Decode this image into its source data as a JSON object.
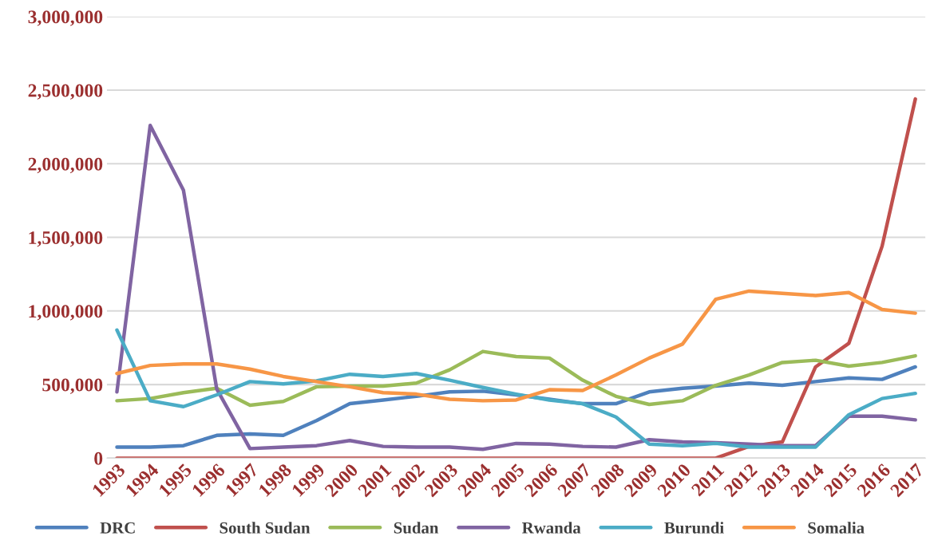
{
  "chart_data": {
    "type": "line",
    "categories": [
      "1993",
      "1994",
      "1995",
      "1996",
      "1997",
      "1998",
      "1999",
      "2000",
      "2001",
      "2002",
      "2003",
      "2004",
      "2005",
      "2006",
      "2007",
      "2008",
      "2009",
      "2010",
      "2011",
      "2012",
      "2013",
      "2014",
      "2015",
      "2016",
      "2017"
    ],
    "series": [
      {
        "name": "DRC",
        "color": "#4f81bd",
        "values": [
          75000,
          75000,
          85000,
          155000,
          165000,
          155000,
          255000,
          370000,
          395000,
          420000,
          450000,
          455000,
          430000,
          400000,
          370000,
          370000,
          450000,
          475000,
          490000,
          510000,
          495000,
          520000,
          545000,
          535000,
          620000
        ]
      },
      {
        "name": "South Sudan",
        "color": "#c0504d",
        "values": [
          0,
          0,
          0,
          0,
          0,
          0,
          0,
          0,
          0,
          0,
          0,
          0,
          0,
          0,
          0,
          0,
          0,
          0,
          0,
          80000,
          110000,
          620000,
          780000,
          1440000,
          2440000
        ]
      },
      {
        "name": "Sudan",
        "color": "#9bbb59",
        "values": [
          390000,
          405000,
          445000,
          475000,
          360000,
          385000,
          485000,
          490000,
          490000,
          510000,
          600000,
          725000,
          690000,
          680000,
          530000,
          420000,
          365000,
          390000,
          495000,
          565000,
          650000,
          665000,
          625000,
          650000,
          695000
        ]
      },
      {
        "name": "Rwanda",
        "color": "#8064a2",
        "values": [
          450000,
          2260000,
          1820000,
          470000,
          65000,
          75000,
          85000,
          120000,
          80000,
          75000,
          75000,
          60000,
          100000,
          95000,
          80000,
          75000,
          125000,
          110000,
          105000,
          95000,
          85000,
          85000,
          285000,
          285000,
          260000
        ]
      },
      {
        "name": "Burundi",
        "color": "#4bacc6",
        "values": [
          870000,
          390000,
          350000,
          430000,
          520000,
          505000,
          525000,
          570000,
          555000,
          575000,
          530000,
          480000,
          435000,
          395000,
          370000,
          280000,
          95000,
          85000,
          100000,
          75000,
          75000,
          75000,
          295000,
          405000,
          440000
        ]
      },
      {
        "name": "Somalia",
        "color": "#f79646",
        "values": [
          575000,
          630000,
          640000,
          640000,
          605000,
          555000,
          520000,
          485000,
          445000,
          435000,
          400000,
          390000,
          395000,
          465000,
          460000,
          565000,
          680000,
          775000,
          1080000,
          1135000,
          1120000,
          1105000,
          1125000,
          1010000,
          985000
        ]
      }
    ],
    "ylim": [
      0,
      3000000
    ],
    "yticks": [
      {
        "value": 0,
        "label": "0"
      },
      {
        "value": 500000,
        "label": "500,000"
      },
      {
        "value": 1000000,
        "label": "1,000,000"
      },
      {
        "value": 1500000,
        "label": "1,500,000"
      },
      {
        "value": 2000000,
        "label": "2,000,000"
      },
      {
        "value": 2500000,
        "label": "2,500,000"
      },
      {
        "value": 3000000,
        "label": "3,000,000"
      }
    ],
    "grid": "y",
    "legend": "bottom",
    "marker": "none",
    "line_style": "solid"
  }
}
